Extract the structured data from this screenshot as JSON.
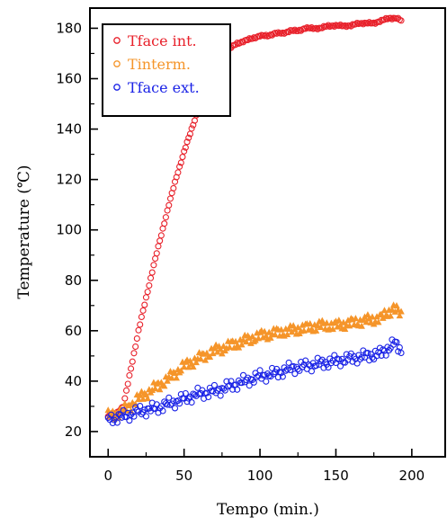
{
  "chart_data": {
    "type": "scatter",
    "title": "",
    "xlabel": "Tempo (min.)",
    "ylabel": "Temperature (℃)",
    "xlim": [
      -12,
      222
    ],
    "ylim": [
      10,
      188
    ],
    "xticks": [
      0,
      50,
      100,
      150,
      200
    ],
    "yticks": [
      20,
      40,
      60,
      80,
      100,
      120,
      140,
      160,
      180
    ],
    "grid": false,
    "legend_position": "top-left",
    "series": [
      {
        "name": "Tface int.",
        "color": "#e8202a",
        "marker": "circle",
        "x": [
          0,
          5,
          10,
          15,
          20,
          25,
          30,
          35,
          40,
          45,
          50,
          55,
          60,
          65,
          70,
          75,
          80,
          85,
          90,
          95,
          100,
          105,
          110,
          115,
          120,
          125,
          130,
          135,
          140,
          145,
          150,
          155,
          160,
          165,
          170,
          175,
          180,
          185,
          190,
          193
        ],
        "y": [
          26,
          27,
          30,
          45,
          60,
          73,
          86,
          98,
          110,
          121,
          131,
          140,
          149,
          157,
          163,
          169,
          172,
          174,
          175,
          176,
          177,
          177,
          178,
          178,
          179,
          179,
          180,
          180,
          180,
          181,
          181,
          181,
          181,
          182,
          182,
          182,
          183,
          184,
          184,
          183
        ]
      },
      {
        "name": "Tinterm.",
        "color": "#f5952a",
        "marker": "triangle",
        "x": [
          0,
          10,
          20,
          30,
          40,
          50,
          60,
          70,
          80,
          90,
          100,
          110,
          120,
          130,
          140,
          150,
          160,
          170,
          180,
          188,
          193
        ],
        "y": [
          26,
          28,
          33,
          37,
          41,
          46,
          49,
          52,
          54,
          56,
          58,
          59,
          60,
          61,
          62,
          62,
          63,
          64,
          65,
          69,
          66
        ]
      },
      {
        "name": "Tface ext.",
        "color": "#1a22e6",
        "marker": "circle",
        "x": [
          0,
          10,
          20,
          30,
          40,
          50,
          60,
          70,
          80,
          90,
          100,
          110,
          120,
          130,
          140,
          150,
          160,
          170,
          180,
          188,
          193
        ],
        "y": [
          25,
          26,
          28,
          29,
          31,
          33,
          35,
          36,
          38,
          40,
          42,
          43,
          45,
          46,
          47,
          48,
          49,
          50,
          51,
          55,
          52
        ]
      }
    ]
  }
}
